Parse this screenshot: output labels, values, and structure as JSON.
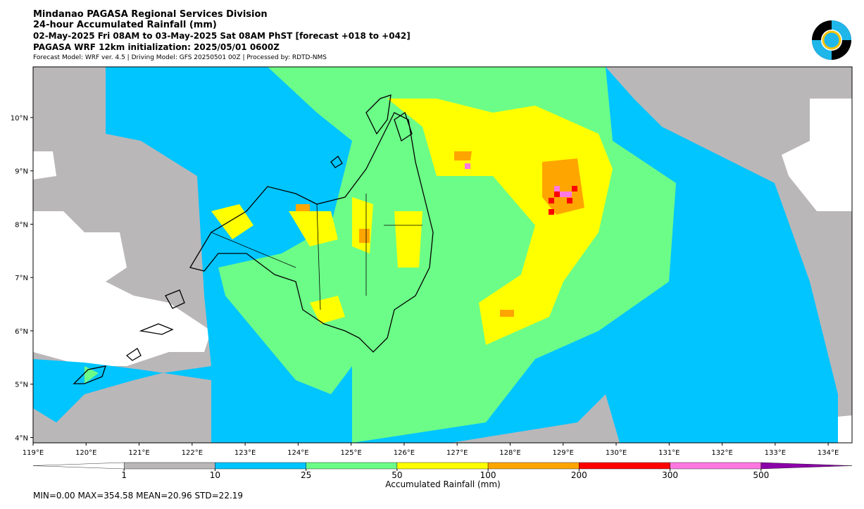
{
  "header": {
    "lines": [
      "Mindanao PAGASA Regional Services Division",
      "24-hour Accumulated Rainfall (mm)",
      "02-May-2025 Fri 08AM to 03-May-2025 Sat 08AM PhST [forecast +018 to +042]",
      "PAGASA WRF 12km initialization: 2025/05/01 0600Z"
    ],
    "note": "Forecast Model: WRF ver. 4.5 | Driving Model: GFS 20250501 00Z | Processed by: RDTD-NMS"
  },
  "map": {
    "lon_range": [
      119,
      134.45
    ],
    "lat_range": [
      3.9,
      10.95
    ],
    "lon_ticks": [
      {
        "value": 119,
        "label": "119°E"
      },
      {
        "value": 120,
        "label": "120°E"
      },
      {
        "value": 121,
        "label": "121°E"
      },
      {
        "value": 122,
        "label": "122°E"
      },
      {
        "value": 123,
        "label": "123°E"
      },
      {
        "value": 124,
        "label": "124°E"
      },
      {
        "value": 125,
        "label": "125°E"
      },
      {
        "value": 126,
        "label": "126°E"
      },
      {
        "value": 127,
        "label": "127°E"
      },
      {
        "value": 128,
        "label": "128°E"
      },
      {
        "value": 129,
        "label": "129°E"
      },
      {
        "value": 130,
        "label": "130°E"
      },
      {
        "value": 131,
        "label": "131°E"
      },
      {
        "value": 132,
        "label": "132°E"
      },
      {
        "value": 133,
        "label": "133°E"
      },
      {
        "value": 134,
        "label": "134°E"
      }
    ],
    "lat_ticks": [
      {
        "value": 4,
        "label": "4°N"
      },
      {
        "value": 5,
        "label": "5°N"
      },
      {
        "value": 6,
        "label": "6°N"
      },
      {
        "value": 7,
        "label": "7°N"
      },
      {
        "value": 8,
        "label": "8°N"
      },
      {
        "value": 9,
        "label": "9°N"
      },
      {
        "value": 10,
        "label": "10°N"
      }
    ]
  },
  "colorbar": {
    "label": "Accumulated Rainfall (mm)",
    "ticks": [
      1,
      10,
      25,
      50,
      100,
      200,
      300,
      500
    ],
    "colors": [
      "#ffffff",
      "#bab7b9",
      "#00c5ff",
      "#6cfd88",
      "#ffff00",
      "#ffa500",
      "#ff0000",
      "#ff77e0",
      "#8b00a8"
    ]
  },
  "stats": "MIN=0.00   MAX=354.58   MEAN=20.96   STD=22.19"
}
